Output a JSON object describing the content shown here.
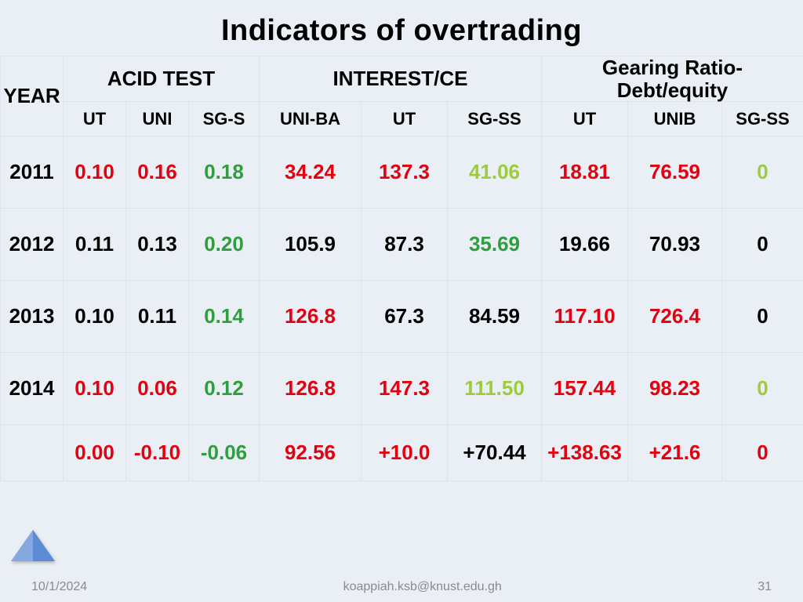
{
  "title": "Indicators of overtrading",
  "groupHeaders": {
    "year": "YEAR",
    "acid": "ACID TEST",
    "interest": "INTEREST/CE",
    "gearing": "Gearing Ratio-Debt/equity"
  },
  "subHeaders": [
    "UT",
    "UNI",
    "SG-S",
    "UNI-BA",
    "UT",
    "SG-SS",
    "UT",
    "UNIB",
    "SG-SS"
  ],
  "rows": [
    {
      "year": "2011",
      "cells": [
        {
          "v": "0.10",
          "c": "c-red"
        },
        {
          "v": "0.16",
          "c": "c-red"
        },
        {
          "v": "0.18",
          "c": "c-green"
        },
        {
          "v": "34.24",
          "c": "c-red"
        },
        {
          "v": "137.3",
          "c": "c-red"
        },
        {
          "v": "41.06",
          "c": "c-lime"
        },
        {
          "v": "18.81",
          "c": "c-red"
        },
        {
          "v": "76.59",
          "c": "c-red"
        },
        {
          "v": "0",
          "c": "c-lime"
        }
      ]
    },
    {
      "year": "2012",
      "cells": [
        {
          "v": "0.11",
          "c": "c-black"
        },
        {
          "v": "0.13",
          "c": "c-black"
        },
        {
          "v": "0.20",
          "c": "c-green"
        },
        {
          "v": "105.9",
          "c": "c-black big"
        },
        {
          "v": "87.3",
          "c": "c-black"
        },
        {
          "v": "35.69",
          "c": "c-green"
        },
        {
          "v": "19.66",
          "c": "c-black"
        },
        {
          "v": "70.93",
          "c": "c-black big"
        },
        {
          "v": "0",
          "c": "c-black big"
        }
      ]
    },
    {
      "year": "2013",
      "cells": [
        {
          "v": "0.10",
          "c": "c-black"
        },
        {
          "v": "0.11",
          "c": "c-black"
        },
        {
          "v": "0.14",
          "c": "c-green"
        },
        {
          "v": "126.8",
          "c": "c-red big"
        },
        {
          "v": "67.3",
          "c": "c-black"
        },
        {
          "v": "84.59",
          "c": "c-black"
        },
        {
          "v": "117.10",
          "c": "c-red"
        },
        {
          "v": "726.4",
          "c": "c-red big"
        },
        {
          "v": "0",
          "c": "c-black big"
        }
      ]
    },
    {
      "year": "2014",
      "cells": [
        {
          "v": "0.10",
          "c": "c-red"
        },
        {
          "v": "0.06",
          "c": "c-red"
        },
        {
          "v": "0.12",
          "c": "c-green"
        },
        {
          "v": "126.8",
          "c": "c-red big"
        },
        {
          "v": "147.3",
          "c": "c-red"
        },
        {
          "v": "111.50",
          "c": "c-lime"
        },
        {
          "v": "157.44",
          "c": "c-red"
        },
        {
          "v": "98.23",
          "c": "c-red big"
        },
        {
          "v": "0",
          "c": "c-lime big"
        }
      ]
    }
  ],
  "deltaRow": [
    {
      "v": "0.00",
      "c": "c-red"
    },
    {
      "v": "-0.10",
      "c": "c-red"
    },
    {
      "v": "-0.06",
      "c": "c-green"
    },
    {
      "v": "92.56",
      "c": "c-red big"
    },
    {
      "v": "+10.0",
      "c": "c-red"
    },
    {
      "v": "+70.44",
      "c": "c-black"
    },
    {
      "v": "+138.63",
      "c": "c-red"
    },
    {
      "v": "+21.6",
      "c": "c-red big"
    },
    {
      "v": "0",
      "c": "c-red big"
    }
  ],
  "footer": {
    "date": "10/1/2024",
    "email": "koappiah.ksb@knust.edu.gh",
    "page": "31"
  },
  "columnWidths": [
    "80px",
    "80px",
    "80px",
    "90px",
    "130px",
    "110px",
    "120px",
    "110px",
    "120px",
    "104px"
  ],
  "colors": {
    "background": "#eaeef5",
    "border": "#dfe4ec",
    "red": "#e3000f",
    "green": "#2e9e3f",
    "lime": "#9ccc3c",
    "black": "#000000",
    "footerText": "#8a8a8a",
    "triangle": "#5b8bd4"
  },
  "typography": {
    "titleSize": 38,
    "titleWeight": 900,
    "groupHeaderSize": 26,
    "subHeaderSize": 22,
    "cellSize": 26,
    "bigCellSize": 32,
    "footerSize": 16,
    "family": "Arial"
  }
}
